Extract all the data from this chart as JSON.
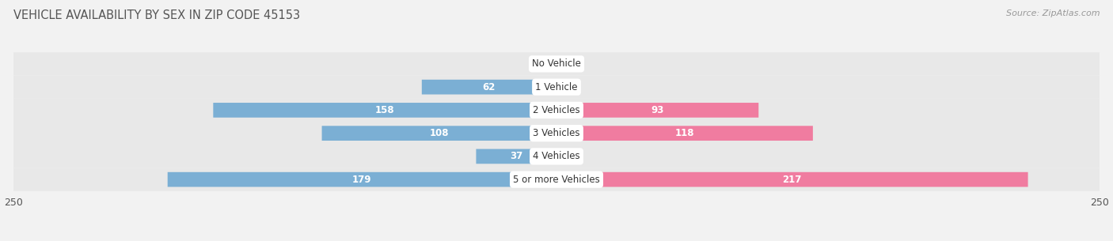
{
  "title": "VEHICLE AVAILABILITY BY SEX IN ZIP CODE 45153",
  "source": "Source: ZipAtlas.com",
  "categories": [
    "No Vehicle",
    "1 Vehicle",
    "2 Vehicles",
    "3 Vehicles",
    "4 Vehicles",
    "5 or more Vehicles"
  ],
  "male_values": [
    0,
    62,
    158,
    108,
    37,
    179
  ],
  "female_values": [
    0,
    0,
    93,
    118,
    0,
    217
  ],
  "male_color": "#7bafd4",
  "female_color": "#f07ca0",
  "axis_max": 250,
  "background_color": "#f2f2f2",
  "row_bg_color": "#e8e8e8",
  "label_color_threshold": 30,
  "title_fontsize": 10.5,
  "source_fontsize": 8,
  "tick_fontsize": 9,
  "category_fontsize": 8.5,
  "value_fontsize": 8.5
}
